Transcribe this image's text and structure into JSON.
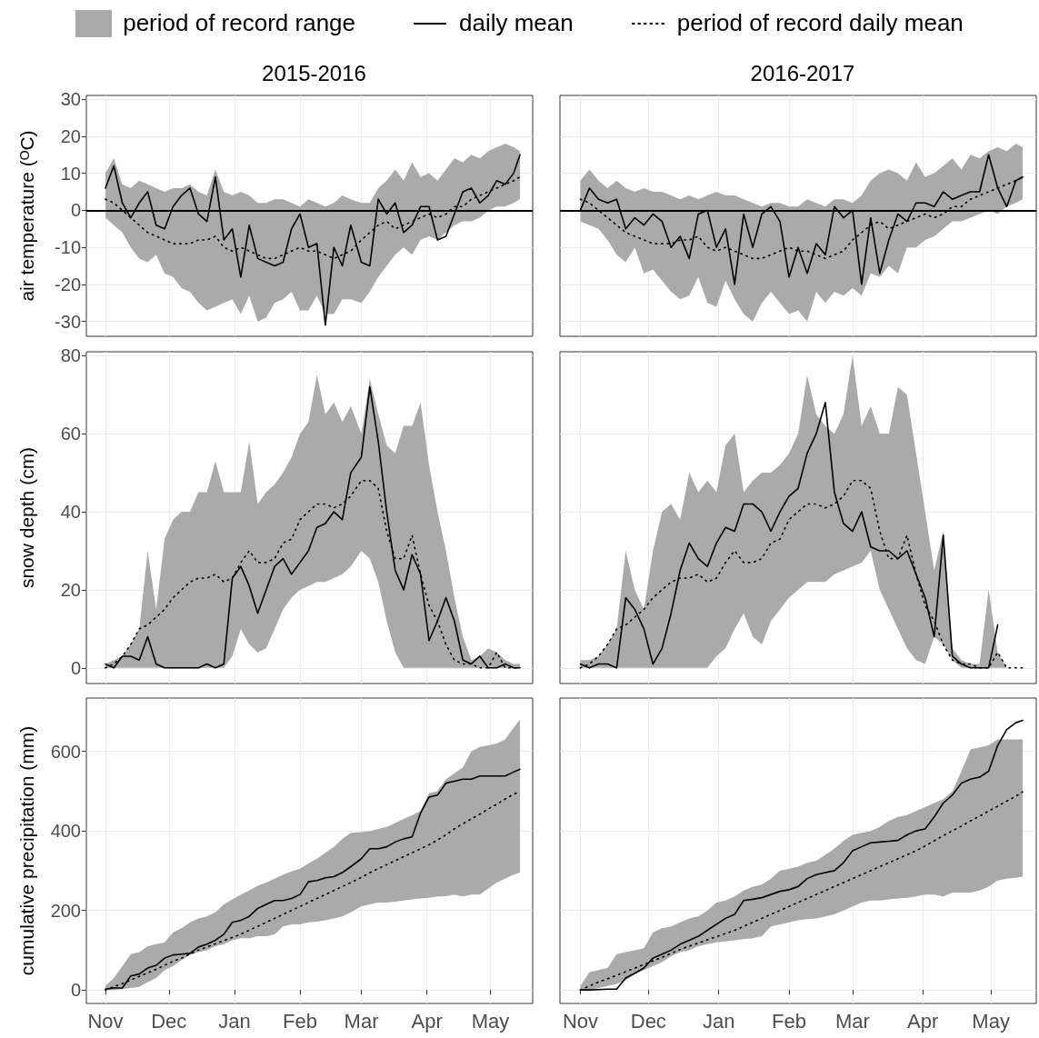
{
  "chart_data": [
    {
      "type": "line",
      "title": "2015-2016",
      "ylabel": "air temperature (ᴼC)",
      "legend": "top",
      "tick_labels": "y",
      "grid": true,
      "marker": "none",
      "annotations": [
        "period of record range"
      ],
      "x": [
        "2015-11-01",
        "2015-11-05",
        "2015-11-09",
        "2015-11-13",
        "2015-11-17",
        "2015-11-21",
        "2015-11-25",
        "2015-11-29",
        "2015-12-03",
        "2015-12-07",
        "2015-12-11",
        "2015-12-15",
        "2015-12-19",
        "2015-12-23",
        "2015-12-27",
        "2015-12-31",
        "2016-01-04",
        "2016-01-08",
        "2016-01-12",
        "2016-01-16",
        "2016-01-20",
        "2016-01-24",
        "2016-01-28",
        "2016-02-01",
        "2016-02-05",
        "2016-02-09",
        "2016-02-13",
        "2016-02-17",
        "2016-02-21",
        "2016-02-25",
        "2016-03-01",
        "2016-03-05",
        "2016-03-09",
        "2016-03-13",
        "2016-03-17",
        "2016-03-21",
        "2016-03-25",
        "2016-03-29",
        "2016-04-02",
        "2016-04-06",
        "2016-04-10",
        "2016-04-14",
        "2016-04-18",
        "2016-04-22",
        "2016-04-26",
        "2016-04-30",
        "2016-05-04",
        "2016-05-08",
        "2016-05-12",
        "2016-05-15"
      ],
      "xlim": [
        "2015-10-23",
        "2016-05-21"
      ],
      "xticks": [
        {
          "value": "2015-11-01",
          "label": null
        },
        {
          "value": "2015-12-01",
          "label": null
        },
        {
          "value": "2016-01-01",
          "label": null
        },
        {
          "value": "2016-02-01",
          "label": null
        },
        {
          "value": "2016-03-01",
          "label": null
        },
        {
          "value": "2016-04-01",
          "label": null
        },
        {
          "value": "2016-05-01",
          "label": null
        }
      ],
      "ylim": [
        -34,
        31
      ],
      "yticks": [
        -30,
        -20,
        -10,
        0,
        10,
        20,
        30
      ],
      "ref_lines": [
        {
          "axis": "y",
          "value": 0,
          "color": "#000000"
        }
      ],
      "series": [
        {
          "name": "daily mean",
          "color": "#000000",
          "line_style": "solid",
          "values": [
            6,
            12,
            2,
            -2,
            2,
            5,
            -4,
            -5,
            1,
            4,
            6,
            -1,
            -3,
            9,
            -8,
            -5,
            -18,
            -4,
            -13,
            -14,
            -15,
            -14,
            -5,
            -1,
            -10,
            -9,
            -31,
            -10,
            -15,
            -4,
            -14,
            -15,
            3,
            -1,
            2,
            -6,
            -4,
            1,
            1,
            -8,
            -7,
            -1,
            5,
            6,
            2,
            4,
            8,
            7,
            10,
            15
          ]
        },
        {
          "name": "period of record daily mean",
          "color": "#000000",
          "line_style": "dotted",
          "values": [
            3,
            2,
            0,
            -2,
            -4,
            -6,
            -7,
            -8,
            -9,
            -9,
            -9,
            -8,
            -8,
            -7,
            -10,
            -11,
            -10,
            -11,
            -12,
            -13,
            -13,
            -12,
            -11,
            -10,
            -11,
            -11,
            -12,
            -13,
            -12,
            -11,
            -8,
            -6,
            -4,
            -3,
            -5,
            -4,
            -3,
            -2,
            -1,
            -2,
            -1,
            1,
            1,
            3,
            4,
            5,
            6,
            7,
            8,
            9
          ],
          "upper": [
            10,
            14,
            7,
            6,
            8,
            7,
            6,
            5,
            6,
            6,
            7,
            5,
            4,
            11,
            5,
            4,
            5,
            4,
            2,
            2,
            3,
            3,
            2,
            1,
            3,
            2,
            1,
            2,
            4,
            3,
            2,
            2,
            6,
            8,
            11,
            8,
            13,
            9,
            10,
            8,
            11,
            14,
            13,
            15,
            14,
            16,
            17,
            18,
            17,
            16
          ],
          "lower": [
            -2,
            -4,
            -6,
            -10,
            -13,
            -14,
            -12,
            -17,
            -18,
            -21,
            -22,
            -25,
            -27,
            -26,
            -25,
            -24,
            -28,
            -23,
            -30,
            -29,
            -25,
            -24,
            -22,
            -27,
            -27,
            -23,
            -28,
            -28,
            -24,
            -24,
            -25,
            -22,
            -18,
            -15,
            -12,
            -10,
            -12,
            -8,
            -7,
            -8,
            -6,
            -4,
            -3,
            -3,
            -2,
            0,
            1,
            1,
            2,
            3
          ]
        }
      ]
    },
    {
      "type": "line",
      "title": "2016-2017",
      "tick_labels": false,
      "grid": true,
      "marker": "none",
      "x": [
        "2016-11-01",
        "2016-11-05",
        "2016-11-09",
        "2016-11-13",
        "2016-11-17",
        "2016-11-21",
        "2016-11-25",
        "2016-11-29",
        "2016-12-03",
        "2016-12-07",
        "2016-12-11",
        "2016-12-15",
        "2016-12-19",
        "2016-12-23",
        "2016-12-27",
        "2016-12-31",
        "2017-01-04",
        "2017-01-08",
        "2017-01-12",
        "2017-01-16",
        "2017-01-20",
        "2017-01-24",
        "2017-01-28",
        "2017-02-01",
        "2017-02-05",
        "2017-02-09",
        "2017-02-13",
        "2017-02-17",
        "2017-02-21",
        "2017-02-25",
        "2017-03-01",
        "2017-03-05",
        "2017-03-09",
        "2017-03-13",
        "2017-03-17",
        "2017-03-21",
        "2017-03-25",
        "2017-03-29",
        "2017-04-02",
        "2017-04-06",
        "2017-04-10",
        "2017-04-14",
        "2017-04-18",
        "2017-04-22",
        "2017-04-26",
        "2017-04-30",
        "2017-05-04",
        "2017-05-08",
        "2017-05-12",
        "2017-05-15"
      ],
      "xlim": [
        "2016-10-23",
        "2017-05-21"
      ],
      "xticks": [
        {
          "value": "2016-11-01",
          "label": null
        },
        {
          "value": "2016-12-01",
          "label": null
        },
        {
          "value": "2017-01-01",
          "label": null
        },
        {
          "value": "2017-02-01",
          "label": null
        },
        {
          "value": "2017-03-01",
          "label": null
        },
        {
          "value": "2017-04-01",
          "label": null
        },
        {
          "value": "2017-05-01",
          "label": null
        }
      ],
      "ylim": [
        -34,
        31
      ],
      "yticks": [
        -30,
        -20,
        -10,
        0,
        10,
        20,
        30
      ],
      "ref_lines": [
        {
          "axis": "y",
          "value": 0,
          "color": "#000000"
        }
      ],
      "series": [
        {
          "color": "#000000",
          "line_style": "solid",
          "values": [
            0,
            6,
            3,
            2,
            3,
            -5,
            -2,
            -4,
            -1,
            -3,
            -10,
            -7,
            -13,
            -1,
            0,
            -10,
            -5,
            -20,
            -1,
            -10,
            -1,
            1,
            -3,
            -18,
            -10,
            -17,
            -9,
            -12,
            1,
            -2,
            0,
            -20,
            -2,
            -17,
            -8,
            -1,
            -3,
            2,
            2,
            1,
            5,
            3,
            4,
            5,
            5,
            15,
            6,
            1,
            8,
            9
          ]
        },
        {
          "color": "#000000",
          "line_style": "dotted",
          "values": [
            3,
            2,
            0,
            -2,
            -4,
            -6,
            -7,
            -8,
            -9,
            -9,
            -9,
            -8,
            -8,
            -7,
            -10,
            -11,
            -10,
            -11,
            -12,
            -13,
            -13,
            -12,
            -11,
            -10,
            -11,
            -11,
            -12,
            -13,
            -12,
            -11,
            -8,
            -6,
            -4,
            -3,
            -5,
            -4,
            -3,
            -2,
            -1,
            -2,
            -1,
            1,
            1,
            3,
            4,
            5,
            6,
            7,
            8,
            9
          ],
          "upper": [
            8,
            11,
            8,
            6,
            8,
            6,
            5,
            6,
            5,
            5,
            4,
            3,
            4,
            3,
            4,
            5,
            4,
            4,
            3,
            2,
            1,
            2,
            2,
            1,
            1,
            3,
            2,
            1,
            3,
            3,
            2,
            4,
            8,
            10,
            11,
            10,
            8,
            13,
            9,
            10,
            12,
            14,
            11,
            15,
            14,
            16,
            17,
            16,
            18,
            17
          ],
          "lower": [
            -3,
            -4,
            -5,
            -8,
            -12,
            -14,
            -10,
            -17,
            -16,
            -19,
            -22,
            -24,
            -23,
            -18,
            -25,
            -26,
            -19,
            -24,
            -28,
            -30,
            -25,
            -22,
            -25,
            -28,
            -27,
            -30,
            -22,
            -25,
            -22,
            -23,
            -21,
            -23,
            -17,
            -18,
            -15,
            -17,
            -10,
            -10,
            -8,
            -7,
            -5,
            -3,
            -3,
            -2,
            -1,
            0,
            -1,
            1,
            2,
            3
          ]
        }
      ]
    },
    {
      "type": "line",
      "ylabel": "snow depth (cm)",
      "tick_labels": "y",
      "grid": true,
      "marker": "none",
      "x": [
        "2015-11-01",
        "2015-11-05",
        "2015-11-09",
        "2015-11-13",
        "2015-11-17",
        "2015-11-21",
        "2015-11-25",
        "2015-11-29",
        "2015-12-03",
        "2015-12-07",
        "2015-12-11",
        "2015-12-15",
        "2015-12-19",
        "2015-12-23",
        "2015-12-27",
        "2015-12-31",
        "2016-01-04",
        "2016-01-08",
        "2016-01-12",
        "2016-01-16",
        "2016-01-20",
        "2016-01-24",
        "2016-01-28",
        "2016-02-01",
        "2016-02-05",
        "2016-02-09",
        "2016-02-13",
        "2016-02-17",
        "2016-02-21",
        "2016-02-25",
        "2016-03-01",
        "2016-03-05",
        "2016-03-09",
        "2016-03-13",
        "2016-03-17",
        "2016-03-21",
        "2016-03-25",
        "2016-03-29",
        "2016-04-02",
        "2016-04-06",
        "2016-04-10",
        "2016-04-14",
        "2016-04-18",
        "2016-04-22",
        "2016-04-26",
        "2016-04-30",
        "2016-05-04",
        "2016-05-08",
        "2016-05-12",
        "2016-05-15"
      ],
      "xlim": [
        "2015-10-23",
        "2016-05-21"
      ],
      "xticks": [
        {
          "value": "2015-11-01",
          "label": null
        },
        {
          "value": "2015-12-01",
          "label": null
        },
        {
          "value": "2016-01-01",
          "label": null
        },
        {
          "value": "2016-02-01",
          "label": null
        },
        {
          "value": "2016-03-01",
          "label": null
        },
        {
          "value": "2016-04-01",
          "label": null
        },
        {
          "value": "2016-05-01",
          "label": null
        }
      ],
      "ylim": [
        -4,
        81
      ],
      "yticks": [
        0,
        20,
        40,
        60,
        80
      ],
      "series": [
        {
          "color": "#000000",
          "line_style": "solid",
          "values": [
            1,
            0,
            3,
            3,
            2,
            8,
            1,
            0,
            0,
            0,
            0,
            0,
            1,
            0,
            1,
            23,
            26,
            21,
            14,
            20,
            26,
            28,
            24,
            27,
            30,
            36,
            37,
            40,
            38,
            50,
            54,
            72,
            58,
            40,
            25,
            20,
            29,
            24,
            7,
            12,
            18,
            12,
            2,
            1,
            3,
            0,
            0,
            1,
            0,
            0
          ]
        },
        {
          "color": "#000000",
          "line_style": "dotted",
          "values": [
            0,
            1,
            3,
            6,
            10,
            11,
            13,
            15,
            18,
            20,
            22,
            23,
            23,
            24,
            22,
            23,
            27,
            30,
            27,
            27,
            28,
            32,
            33,
            38,
            40,
            42,
            42,
            41,
            42,
            44,
            48,
            48,
            46,
            35,
            28,
            28,
            34,
            24,
            16,
            12,
            6,
            2,
            1,
            1,
            0,
            0,
            4,
            0,
            0,
            0
          ],
          "upper": [
            1,
            2,
            3,
            6,
            10,
            30,
            15,
            33,
            38,
            40,
            40,
            45,
            45,
            53,
            45,
            45,
            45,
            58,
            42,
            45,
            47,
            50,
            54,
            60,
            63,
            75,
            65,
            68,
            63,
            67,
            60,
            74,
            65,
            57,
            55,
            62,
            62,
            68,
            52,
            40,
            30,
            18,
            8,
            2,
            3,
            5,
            4,
            2,
            1,
            1
          ],
          "lower": [
            0,
            0,
            0,
            0,
            0,
            0,
            0,
            0,
            0,
            0,
            0,
            0,
            0,
            0,
            0,
            3,
            10,
            6,
            4,
            5,
            10,
            15,
            18,
            20,
            21,
            22,
            22,
            23,
            24,
            26,
            30,
            28,
            22,
            12,
            4,
            0,
            0,
            0,
            0,
            0,
            0,
            0,
            0,
            0,
            0,
            0,
            0,
            0,
            0,
            0
          ]
        }
      ]
    },
    {
      "type": "line",
      "tick_labels": false,
      "grid": true,
      "marker": "none",
      "x": [
        "2016-11-01",
        "2016-11-05",
        "2016-11-09",
        "2016-11-13",
        "2016-11-17",
        "2016-11-21",
        "2016-11-25",
        "2016-11-29",
        "2016-12-03",
        "2016-12-07",
        "2016-12-11",
        "2016-12-15",
        "2016-12-19",
        "2016-12-23",
        "2016-12-27",
        "2016-12-31",
        "2017-01-04",
        "2017-01-08",
        "2017-01-12",
        "2017-01-16",
        "2017-01-20",
        "2017-01-24",
        "2017-01-28",
        "2017-02-01",
        "2017-02-05",
        "2017-02-09",
        "2017-02-13",
        "2017-02-17",
        "2017-02-21",
        "2017-02-25",
        "2017-03-01",
        "2017-03-05",
        "2017-03-09",
        "2017-03-13",
        "2017-03-17",
        "2017-03-21",
        "2017-03-25",
        "2017-03-29",
        "2017-04-02",
        "2017-04-06",
        "2017-04-10",
        "2017-04-14",
        "2017-04-18",
        "2017-04-22",
        "2017-04-26",
        "2017-04-30",
        "2017-05-04",
        "2017-05-08",
        "2017-05-12",
        "2017-05-15"
      ],
      "xlim": [
        "2016-10-23",
        "2017-05-21"
      ],
      "xticks": [
        {
          "value": "2016-11-01",
          "label": null
        },
        {
          "value": "2016-12-01",
          "label": null
        },
        {
          "value": "2017-01-01",
          "label": null
        },
        {
          "value": "2017-02-01",
          "label": null
        },
        {
          "value": "2017-03-01",
          "label": null
        },
        {
          "value": "2017-04-01",
          "label": null
        },
        {
          "value": "2017-05-01",
          "label": null
        }
      ],
      "ylim": [
        -4,
        81
      ],
      "yticks": [
        0,
        20,
        40,
        60,
        80
      ],
      "series": [
        {
          "color": "#000000",
          "line_style": "solid",
          "values": [
            1,
            0,
            1,
            1,
            0,
            18,
            15,
            10,
            1,
            5,
            14,
            25,
            32,
            28,
            26,
            32,
            36,
            35,
            42,
            42,
            40,
            35,
            40,
            44,
            46,
            55,
            60,
            68,
            45,
            37,
            35,
            40,
            31,
            30,
            30,
            28,
            30,
            24,
            18,
            8,
            34,
            3,
            1,
            0,
            0,
            0,
            11,
            null,
            null,
            null
          ]
        },
        {
          "color": "#000000",
          "line_style": "dotted",
          "values": [
            0,
            1,
            3,
            6,
            10,
            11,
            13,
            15,
            18,
            20,
            22,
            23,
            23,
            24,
            22,
            23,
            27,
            30,
            27,
            27,
            28,
            32,
            33,
            38,
            40,
            42,
            42,
            41,
            42,
            44,
            48,
            48,
            46,
            35,
            28,
            28,
            34,
            24,
            16,
            12,
            6,
            2,
            1,
            1,
            0,
            0,
            4,
            0,
            0,
            0
          ],
          "upper": [
            2,
            2,
            3,
            6,
            10,
            30,
            20,
            15,
            30,
            40,
            42,
            38,
            50,
            45,
            48,
            45,
            57,
            60,
            45,
            48,
            50,
            50,
            52,
            55,
            60,
            75,
            65,
            62,
            60,
            65,
            80,
            62,
            67,
            60,
            60,
            72,
            70,
            55,
            40,
            25,
            35,
            5,
            2,
            1,
            1,
            20,
            4,
            0,
            0,
            0
          ],
          "lower": [
            0,
            0,
            0,
            0,
            0,
            0,
            0,
            0,
            0,
            0,
            0,
            0,
            0,
            0,
            0,
            3,
            5,
            10,
            14,
            8,
            6,
            12,
            15,
            18,
            20,
            22,
            22,
            22,
            24,
            25,
            26,
            27,
            30,
            20,
            15,
            10,
            5,
            2,
            1,
            8,
            6,
            2,
            0,
            0,
            0,
            0,
            0,
            0,
            0,
            0
          ]
        }
      ]
    },
    {
      "type": "line",
      "ylabel": "cumulative precipitation (mm)",
      "grid": true,
      "marker": "none",
      "x": [
        "2015-11-01",
        "2015-11-05",
        "2015-11-09",
        "2015-11-13",
        "2015-11-17",
        "2015-11-21",
        "2015-11-25",
        "2015-11-29",
        "2015-12-03",
        "2015-12-07",
        "2015-12-11",
        "2015-12-15",
        "2015-12-19",
        "2015-12-23",
        "2015-12-27",
        "2015-12-31",
        "2016-01-04",
        "2016-01-08",
        "2016-01-12",
        "2016-01-16",
        "2016-01-20",
        "2016-01-24",
        "2016-01-28",
        "2016-02-01",
        "2016-02-05",
        "2016-02-09",
        "2016-02-13",
        "2016-02-17",
        "2016-02-21",
        "2016-02-25",
        "2016-03-01",
        "2016-03-05",
        "2016-03-09",
        "2016-03-13",
        "2016-03-17",
        "2016-03-21",
        "2016-03-25",
        "2016-03-29",
        "2016-04-02",
        "2016-04-06",
        "2016-04-10",
        "2016-04-14",
        "2016-04-18",
        "2016-04-22",
        "2016-04-26",
        "2016-04-30",
        "2016-05-04",
        "2016-05-08",
        "2016-05-12",
        "2016-05-15"
      ],
      "xlim": [
        "2015-10-23",
        "2016-05-21"
      ],
      "xticks": [
        {
          "value": "2015-11-01",
          "label": "Nov"
        },
        {
          "value": "2015-12-01",
          "label": "Dec"
        },
        {
          "value": "2016-01-01",
          "label": "Jan"
        },
        {
          "value": "2016-02-01",
          "label": "Feb"
        },
        {
          "value": "2016-03-01",
          "label": "Mar"
        },
        {
          "value": "2016-04-01",
          "label": "Apr"
        },
        {
          "value": "2016-05-01",
          "label": "May"
        }
      ],
      "ylim": [
        -34,
        734
      ],
      "yticks": [
        0,
        200,
        400,
        600
      ],
      "series": [
        {
          "color": "#000000",
          "line_style": "solid",
          "values": [
            2,
            5,
            5,
            35,
            40,
            55,
            62,
            80,
            88,
            90,
            92,
            108,
            115,
            125,
            140,
            170,
            175,
            185,
            205,
            215,
            225,
            225,
            230,
            240,
            272,
            275,
            282,
            285,
            295,
            310,
            330,
            355,
            355,
            360,
            372,
            380,
            385,
            445,
            485,
            490,
            520,
            525,
            530,
            530,
            538,
            538,
            538,
            538,
            548,
            555
          ]
        },
        {
          "color": "#000000",
          "line_style": "dotted",
          "values": [
            0,
            8,
            16,
            25,
            34,
            43,
            52,
            62,
            72,
            80,
            90,
            100,
            108,
            116,
            124,
            132,
            140,
            150,
            160,
            170,
            180,
            190,
            200,
            210,
            220,
            230,
            240,
            250,
            260,
            270,
            283,
            295,
            305,
            315,
            325,
            335,
            345,
            355,
            365,
            377,
            390,
            405,
            418,
            430,
            442,
            455,
            467,
            480,
            492,
            500
          ],
          "upper": [
            10,
            30,
            60,
            90,
            95,
            110,
            115,
            120,
            145,
            155,
            170,
            180,
            185,
            195,
            215,
            228,
            240,
            250,
            262,
            270,
            280,
            290,
            298,
            305,
            318,
            330,
            345,
            360,
            380,
            395,
            397,
            400,
            405,
            410,
            420,
            430,
            440,
            450,
            495,
            500,
            530,
            545,
            560,
            600,
            611,
            615,
            620,
            630,
            660,
            680
          ],
          "lower": [
            0,
            0,
            2,
            5,
            8,
            20,
            30,
            50,
            60,
            75,
            88,
            95,
            100,
            110,
            115,
            125,
            130,
            130,
            135,
            135,
            140,
            160,
            165,
            165,
            170,
            172,
            175,
            180,
            185,
            195,
            210,
            215,
            220,
            220,
            222,
            225,
            228,
            230,
            232,
            235,
            236,
            240,
            235,
            240,
            240,
            255,
            270,
            280,
            290,
            295
          ]
        }
      ]
    },
    {
      "type": "line",
      "tick_labels": "x",
      "grid": true,
      "marker": "none",
      "x": [
        "2016-11-01",
        "2016-11-05",
        "2016-11-09",
        "2016-11-13",
        "2016-11-17",
        "2016-11-21",
        "2016-11-25",
        "2016-11-29",
        "2016-12-03",
        "2016-12-07",
        "2016-12-11",
        "2016-12-15",
        "2016-12-19",
        "2016-12-23",
        "2016-12-27",
        "2016-12-31",
        "2017-01-04",
        "2017-01-08",
        "2017-01-12",
        "2017-01-16",
        "2017-01-20",
        "2017-01-24",
        "2017-01-28",
        "2017-02-01",
        "2017-02-05",
        "2017-02-09",
        "2017-02-13",
        "2017-02-17",
        "2017-02-21",
        "2017-02-25",
        "2017-03-01",
        "2017-03-05",
        "2017-03-09",
        "2017-03-13",
        "2017-03-17",
        "2017-03-21",
        "2017-03-25",
        "2017-03-29",
        "2017-04-02",
        "2017-04-06",
        "2017-04-10",
        "2017-04-14",
        "2017-04-18",
        "2017-04-22",
        "2017-04-26",
        "2017-04-30",
        "2017-05-04",
        "2017-05-08",
        "2017-05-12",
        "2017-05-15"
      ],
      "xlim": [
        "2016-10-23",
        "2017-05-21"
      ],
      "xticks": [
        {
          "value": "2016-11-01",
          "label": "Nov"
        },
        {
          "value": "2016-12-01",
          "label": "Dec"
        },
        {
          "value": "2017-01-01",
          "label": "Jan"
        },
        {
          "value": "2017-02-01",
          "label": "Feb"
        },
        {
          "value": "2017-03-01",
          "label": "Mar"
        },
        {
          "value": "2017-04-01",
          "label": "Apr"
        },
        {
          "value": "2017-05-01",
          "label": "May"
        }
      ],
      "ylim": [
        -34,
        734
      ],
      "yticks": [
        0,
        200,
        400,
        600
      ],
      "series": [
        {
          "color": "#000000",
          "line_style": "solid",
          "values": [
            0,
            0,
            1,
            2,
            2,
            30,
            42,
            55,
            80,
            90,
            100,
            115,
            125,
            135,
            150,
            165,
            180,
            190,
            225,
            228,
            232,
            240,
            248,
            252,
            260,
            280,
            290,
            295,
            300,
            320,
            350,
            360,
            370,
            372,
            374,
            376,
            390,
            400,
            405,
            435,
            470,
            490,
            520,
            530,
            535,
            550,
            615,
            655,
            672,
            678
          ]
        },
        {
          "color": "#000000",
          "line_style": "dotted",
          "values": [
            0,
            10,
            20,
            28,
            37,
            46,
            55,
            64,
            73,
            82,
            92,
            102,
            110,
            118,
            126,
            134,
            142,
            150,
            160,
            170,
            180,
            190,
            200,
            210,
            220,
            230,
            240,
            250,
            260,
            270,
            280,
            290,
            300,
            310,
            320,
            330,
            340,
            350,
            362,
            375,
            388,
            400,
            412,
            425,
            437,
            450,
            462,
            475,
            487,
            498
          ],
          "upper": [
            10,
            45,
            50,
            55,
            90,
            95,
            100,
            105,
            145,
            155,
            160,
            170,
            180,
            185,
            200,
            220,
            225,
            235,
            250,
            260,
            265,
            280,
            300,
            305,
            310,
            320,
            325,
            340,
            355,
            375,
            390,
            395,
            400,
            410,
            425,
            435,
            440,
            450,
            460,
            470,
            480,
            500,
            550,
            605,
            610,
            615,
            630,
            630,
            630,
            630
          ],
          "lower": [
            0,
            0,
            5,
            10,
            15,
            25,
            40,
            50,
            60,
            70,
            85,
            95,
            100,
            110,
            115,
            120,
            122,
            125,
            128,
            130,
            135,
            160,
            165,
            170,
            175,
            178,
            180,
            185,
            190,
            200,
            210,
            220,
            225,
            225,
            228,
            230,
            232,
            235,
            240,
            240,
            235,
            245,
            245,
            245,
            250,
            260,
            275,
            280,
            282,
            285
          ]
        }
      ]
    }
  ]
}
